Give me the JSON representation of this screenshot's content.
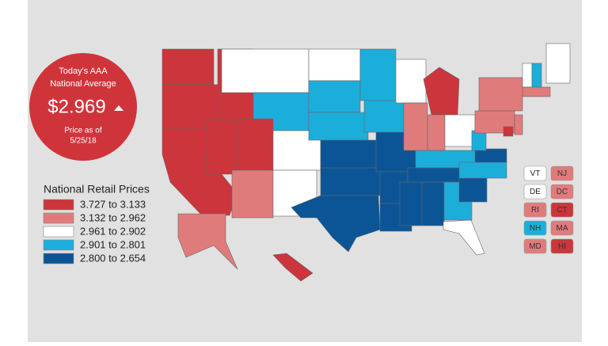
{
  "badge": {
    "line1": "Today's AAA",
    "line2": "National Average",
    "price": "$2.969",
    "note1": "Price as of",
    "note2": "5/25/18",
    "color": "#d0343b"
  },
  "legend": {
    "title": "National Retail Prices",
    "items": [
      {
        "label": "3.727 to 3.133",
        "color": "#cc353b"
      },
      {
        "label": "3.132 to 2.962",
        "color": "#e07b7c"
      },
      {
        "label": "2.961 to 2.902",
        "color": "#ffffff"
      },
      {
        "label": "2.901 to 2.801",
        "color": "#1caedb"
      },
      {
        "label": "2.800 to 2.654",
        "color": "#0b5596"
      }
    ]
  },
  "small_states": [
    {
      "label": "VT",
      "bin": 2
    },
    {
      "label": "NJ",
      "bin": 1
    },
    {
      "label": "DE",
      "bin": 2
    },
    {
      "label": "DC",
      "bin": 1
    },
    {
      "label": "RI",
      "bin": 1
    },
    {
      "label": "CT",
      "bin": 0
    },
    {
      "label": "NH",
      "bin": 3
    },
    {
      "label": "MA",
      "bin": 1
    },
    {
      "label": "MD",
      "bin": 1
    },
    {
      "label": "HI",
      "bin": 0
    }
  ],
  "map_bins": [
    0,
    0,
    0,
    0,
    0,
    2,
    3,
    0,
    1,
    2,
    2,
    2,
    3,
    3,
    4,
    4,
    4,
    3,
    3,
    4,
    4,
    4,
    2,
    1,
    0,
    1,
    2,
    3,
    4,
    4,
    4,
    3,
    2,
    4,
    3,
    4,
    3,
    1,
    1,
    2,
    2,
    3,
    1,
    1,
    1,
    0,
    0
  ]
}
